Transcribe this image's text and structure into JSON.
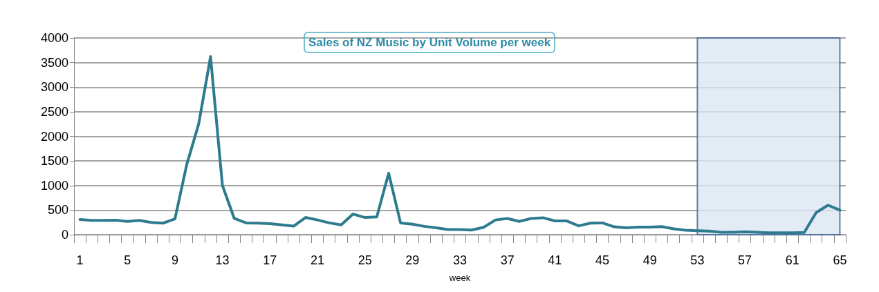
{
  "chart_data": {
    "type": "line",
    "title": "Sales of NZ Music by Unit Volume per week",
    "xlabel": "week",
    "categories": [
      "1",
      null,
      null,
      null,
      "5",
      null,
      null,
      null,
      "9",
      null,
      null,
      null,
      "13",
      null,
      null,
      null,
      "17",
      null,
      null,
      null,
      "21",
      null,
      null,
      null,
      "25",
      null,
      null,
      null,
      "29",
      null,
      null,
      null,
      "33",
      null,
      null,
      null,
      "37",
      null,
      null,
      null,
      "41",
      null,
      null,
      null,
      "45",
      null,
      null,
      null,
      "49",
      null,
      null,
      null,
      "53",
      null,
      null,
      null,
      "57",
      null,
      null,
      null,
      "61",
      null,
      null,
      null,
      "65"
    ],
    "series": [
      {
        "color": "#2e7b90",
        "values": [
          310,
          290,
          290,
          295,
          270,
          290,
          250,
          235,
          320,
          1430,
          2250,
          3620,
          1000,
          330,
          240,
          235,
          225,
          200,
          175,
          350,
          300,
          240,
          200,
          420,
          350,
          360,
          1250,
          240,
          215,
          170,
          140,
          105,
          105,
          95,
          150,
          300,
          330,
          270,
          330,
          345,
          280,
          280,
          180,
          235,
          240,
          160,
          140,
          155,
          155,
          165,
          120,
          90,
          80,
          75,
          50,
          50,
          60,
          50,
          40,
          40,
          40,
          45,
          450,
          600,
          500
        ]
      }
    ],
    "ylim": [
      0,
      4000
    ],
    "yticks": [
      0,
      500,
      1000,
      1500,
      2000,
      2500,
      3000,
      3500,
      4000
    ],
    "grid": "y",
    "marker": "none",
    "line_style": "solid",
    "bands": [
      {
        "axis": "x",
        "from": "53",
        "to": "65",
        "color": "#dce6f2"
      }
    ]
  }
}
